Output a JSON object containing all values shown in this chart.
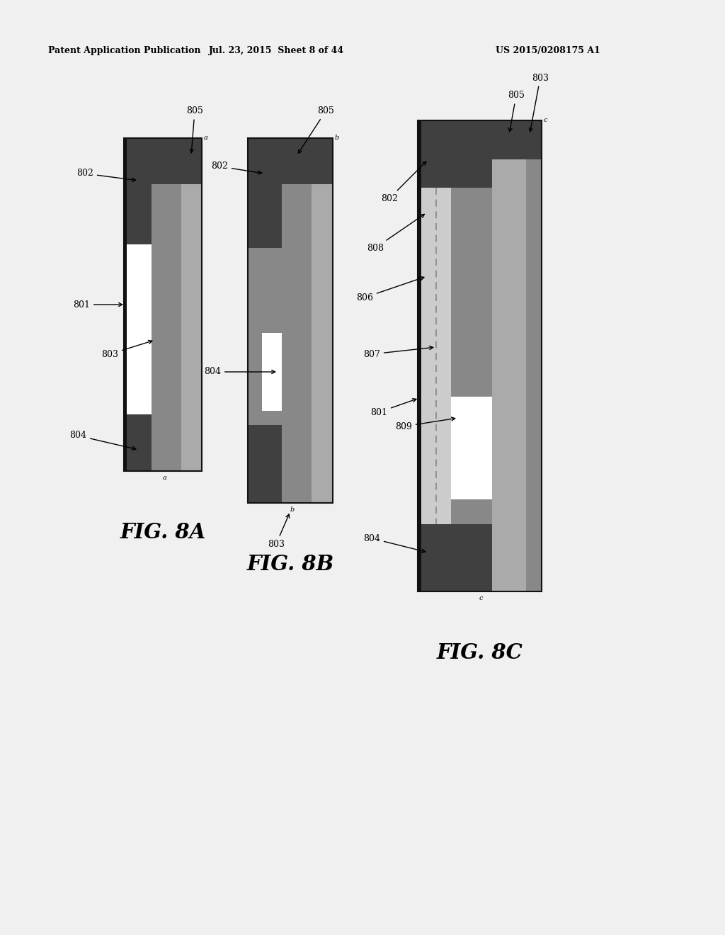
{
  "bg_color": "#f0f0f0",
  "header_left": "Patent Application Publication",
  "header_center": "Jul. 23, 2015  Sheet 8 of 44",
  "header_right": "US 2015/0208175 A1",
  "c_dark": "#404040",
  "c_med_dark": "#606060",
  "c_med": "#888888",
  "c_light": "#aaaaaa",
  "c_vlight": "#cccccc",
  "c_white": "#ffffff",
  "c_black": "#111111",
  "c_bg": "#f0f0f0"
}
